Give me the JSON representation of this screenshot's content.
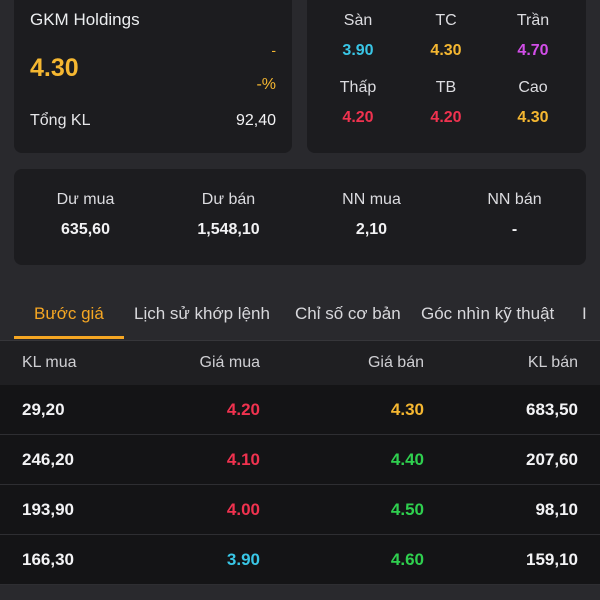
{
  "summary": {
    "company_name": "GKM Holdings",
    "price": "4.30",
    "change": "-",
    "change_pct": "-%",
    "volume_label": "Tổng KL",
    "volume_value": "92,40"
  },
  "price_levels": [
    {
      "label": "Sàn",
      "value": "3.90",
      "color": "#39c6e6"
    },
    {
      "label": "TC",
      "value": "4.30",
      "color": "#f5b731"
    },
    {
      "label": "Trần",
      "value": "4.70",
      "color": "#d24ee8"
    },
    {
      "label": "Thấp",
      "value": "4.20",
      "color": "#f0324f"
    },
    {
      "label": "TB",
      "value": "4.20",
      "color": "#f0324f"
    },
    {
      "label": "Cao",
      "value": "4.30",
      "color": "#f5b731"
    }
  ],
  "trading": [
    {
      "label": "Dư mua",
      "value": "635,60"
    },
    {
      "label": "Dư bán",
      "value": "1,548,10"
    },
    {
      "label": "NN mua",
      "value": "2,10"
    },
    {
      "label": "NN bán",
      "value": "-"
    }
  ],
  "tabs": [
    {
      "label": "Bước giá",
      "active": true
    },
    {
      "label": "Lịch sử khớp lệnh",
      "active": false
    },
    {
      "label": "Chỉ số cơ bản",
      "active": false
    },
    {
      "label": "Góc nhìn kỹ thuật",
      "active": false
    },
    {
      "label": "I",
      "active": false
    }
  ],
  "order_book": {
    "headers": [
      "KL mua",
      "Giá mua",
      "Giá bán",
      "KL bán"
    ],
    "rows": [
      {
        "bid_vol": "29,20",
        "bid_price": "4.20",
        "bid_color": "#f0324f",
        "ask_price": "4.30",
        "ask_color": "#f5b731",
        "ask_vol": "683,50"
      },
      {
        "bid_vol": "246,20",
        "bid_price": "4.10",
        "bid_color": "#f0324f",
        "ask_price": "4.40",
        "ask_color": "#2fd04f",
        "ask_vol": "207,60"
      },
      {
        "bid_vol": "193,90",
        "bid_price": "4.00",
        "bid_color": "#f0324f",
        "ask_price": "4.50",
        "ask_color": "#2fd04f",
        "ask_vol": "98,10"
      },
      {
        "bid_vol": "166,30",
        "bid_price": "3.90",
        "bid_color": "#39c6e6",
        "ask_price": "4.60",
        "ask_color": "#2fd04f",
        "ask_vol": "159,10"
      }
    ]
  }
}
